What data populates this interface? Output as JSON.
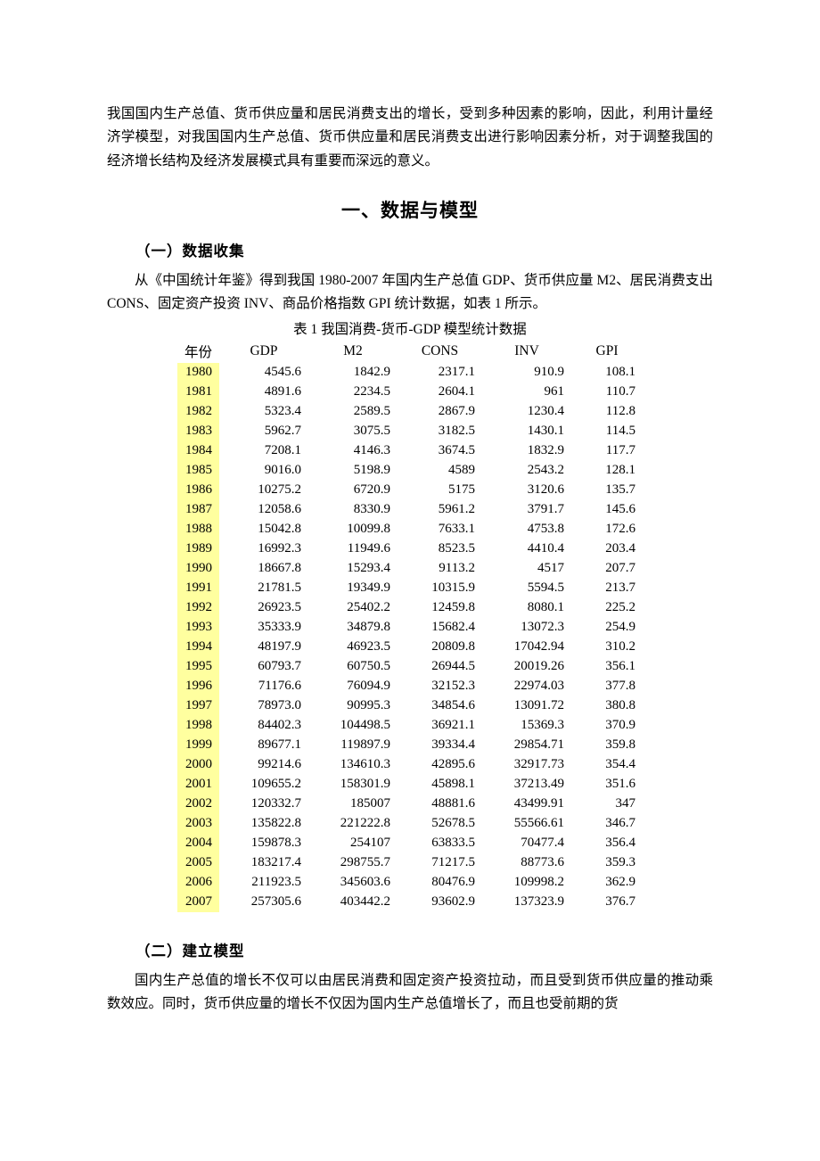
{
  "intro_paragraph": "我国国内生产总值、货币供应量和居民消费支出的增长，受到多种因素的影响，因此，利用计量经济学模型，对我国国内生产总值、货币供应量和居民消费支出进行影响因素分析，对于调整我国的经济增长结构及经济发展模式具有重要而深远的意义。",
  "section_title": "一、数据与模型",
  "subsection1_title": "（一）数据收集",
  "data_intro_paragraph": "从《中国统计年鉴》得到我国 1980-2007 年国内生产总值 GDP、货币供应量 M2、居民消费支出 CONS、固定资产投资 INV、商品价格指数 GPI 统计数据，如表 1 所示。",
  "table_caption": "表 1  我国消费-货币-GDP 模型统计数据",
  "table": {
    "headers": [
      "年份",
      "GDP",
      "M2",
      "CONS",
      "INV",
      "GPI"
    ],
    "year_col_bg": "#ffff9f",
    "header_font_family_cn": "SimSun",
    "header_font_family_en": "Times New Roman",
    "data_font_family": "Times New Roman",
    "fontsize": 15,
    "text_align_data": "right",
    "text_align_year": "center",
    "rows": [
      [
        "1980",
        "4545.6",
        "1842.9",
        "2317.1",
        "910.9",
        "108.1"
      ],
      [
        "1981",
        "4891.6",
        "2234.5",
        "2604.1",
        "961",
        "110.7"
      ],
      [
        "1982",
        "5323.4",
        "2589.5",
        "2867.9",
        "1230.4",
        "112.8"
      ],
      [
        "1983",
        "5962.7",
        "3075.5",
        "3182.5",
        "1430.1",
        "114.5"
      ],
      [
        "1984",
        "7208.1",
        "4146.3",
        "3674.5",
        "1832.9",
        "117.7"
      ],
      [
        "1985",
        "9016.0",
        "5198.9",
        "4589",
        "2543.2",
        "128.1"
      ],
      [
        "1986",
        "10275.2",
        "6720.9",
        "5175",
        "3120.6",
        "135.7"
      ],
      [
        "1987",
        "12058.6",
        "8330.9",
        "5961.2",
        "3791.7",
        "145.6"
      ],
      [
        "1988",
        "15042.8",
        "10099.8",
        "7633.1",
        "4753.8",
        "172.6"
      ],
      [
        "1989",
        "16992.3",
        "11949.6",
        "8523.5",
        "4410.4",
        "203.4"
      ],
      [
        "1990",
        "18667.8",
        "15293.4",
        "9113.2",
        "4517",
        "207.7"
      ],
      [
        "1991",
        "21781.5",
        "19349.9",
        "10315.9",
        "5594.5",
        "213.7"
      ],
      [
        "1992",
        "26923.5",
        "25402.2",
        "12459.8",
        "8080.1",
        "225.2"
      ],
      [
        "1993",
        "35333.9",
        "34879.8",
        "15682.4",
        "13072.3",
        "254.9"
      ],
      [
        "1994",
        "48197.9",
        "46923.5",
        "20809.8",
        "17042.94",
        "310.2"
      ],
      [
        "1995",
        "60793.7",
        "60750.5",
        "26944.5",
        "20019.26",
        "356.1"
      ],
      [
        "1996",
        "71176.6",
        "76094.9",
        "32152.3",
        "22974.03",
        "377.8"
      ],
      [
        "1997",
        "78973.0",
        "90995.3",
        "34854.6",
        "13091.72",
        "380.8"
      ],
      [
        "1998",
        "84402.3",
        "104498.5",
        "36921.1",
        "15369.3",
        "370.9"
      ],
      [
        "1999",
        "89677.1",
        "119897.9",
        "39334.4",
        "29854.71",
        "359.8"
      ],
      [
        "2000",
        "99214.6",
        "134610.3",
        "42895.6",
        "32917.73",
        "354.4"
      ],
      [
        "2001",
        "109655.2",
        "158301.9",
        "45898.1",
        "37213.49",
        "351.6"
      ],
      [
        "2002",
        "120332.7",
        "185007",
        "48881.6",
        "43499.91",
        "347"
      ],
      [
        "2003",
        "135822.8",
        "221222.8",
        "52678.5",
        "55566.61",
        "346.7"
      ],
      [
        "2004",
        "159878.3",
        "254107",
        "63833.5",
        "70477.4",
        "356.4"
      ],
      [
        "2005",
        "183217.4",
        "298755.7",
        "71217.5",
        "88773.6",
        "359.3"
      ],
      [
        "2006",
        "211923.5",
        "345603.6",
        "80476.9",
        "109998.2",
        "362.9"
      ],
      [
        "2007",
        "257305.6",
        "403442.2",
        "93602.9",
        "137323.9",
        "376.7"
      ]
    ]
  },
  "subsection2_title": "（二）建立模型",
  "model_paragraph": "国内生产总值的增长不仅可以由居民消费和固定资产投资拉动，而且受到货币供应量的推动乘数效应。同时，货币供应量的增长不仅因为国内生产总值增长了，而且也受前期的货"
}
